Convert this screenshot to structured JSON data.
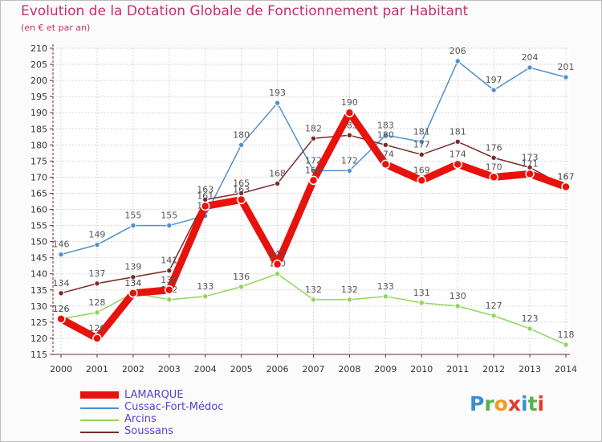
{
  "header": {
    "title": "Evolution de la Dotation Globale de Fonctionnement par Habitant",
    "subtitle": "(en € et par an)"
  },
  "brand": {
    "logo_text": "Proxiti",
    "letter_colors": [
      "#3d8fd4",
      "#5ab04a",
      "#f29c1f",
      "#e23b2a",
      "#3d8fd4",
      "#5ab04a",
      "#e23b2a"
    ]
  },
  "chart_data": {
    "type": "line",
    "x": [
      2000,
      2001,
      2002,
      2003,
      2004,
      2005,
      2006,
      2007,
      2008,
      2009,
      2010,
      2011,
      2012,
      2013,
      2014
    ],
    "ylim": [
      115,
      210
    ],
    "yticks": [
      115,
      120,
      125,
      130,
      135,
      140,
      145,
      150,
      155,
      160,
      165,
      170,
      175,
      180,
      185,
      190,
      195,
      200,
      205,
      210
    ],
    "grid": true,
    "legend_position": "bottom-left",
    "series": [
      {
        "name": "Cussac-Fort-Médoc",
        "color": "#4f8fd0",
        "values": [
          146,
          149,
          155,
          155,
          158,
          180,
          193,
          172,
          172,
          183,
          181,
          206,
          197,
          204,
          201
        ]
      },
      {
        "name": "Arcins",
        "color": "#8fd65a",
        "values": [
          126,
          128,
          134,
          132,
          133,
          136,
          140,
          132,
          132,
          133,
          131,
          130,
          127,
          123,
          118
        ]
      },
      {
        "name": "Soussans",
        "color": "#7a2a2a",
        "values": [
          134,
          137,
          139,
          141,
          163,
          165,
          168,
          182,
          183,
          180,
          177,
          181,
          176,
          173,
          167
        ]
      },
      {
        "name": "LAMARQUE",
        "color": "#e8120c",
        "values": [
          126,
          120,
          134,
          135,
          161,
          163,
          143,
          169,
          190,
          174,
          169,
          174,
          170,
          171,
          167
        ]
      }
    ]
  }
}
